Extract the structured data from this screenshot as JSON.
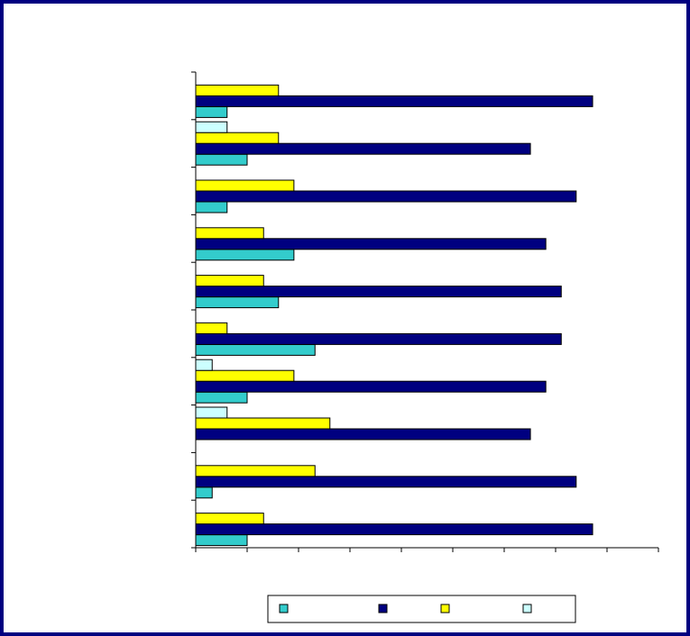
{
  "chart_data": {
    "type": "hbar",
    "categories": [
      null,
      null,
      null,
      null,
      null,
      null,
      null,
      null,
      null,
      null
    ],
    "series": [
      {
        "color": "#33cccc",
        "values": [
          1.0,
          0.32,
          null,
          1.0,
          2.32,
          1.61,
          1.91,
          0.61,
          1.0,
          0.61
        ]
      },
      {
        "color": "#000080",
        "values": [
          7.72,
          7.4,
          6.51,
          6.81,
          7.11,
          7.11,
          6.81,
          7.4,
          6.51,
          7.72
        ]
      },
      {
        "color": "#ffff00",
        "values": [
          1.32,
          2.32,
          2.61,
          1.91,
          0.61,
          1.32,
          1.32,
          1.91,
          1.61,
          1.61
        ]
      },
      {
        "color": "#ccffff",
        "values": [
          null,
          null,
          0.61,
          0.32,
          null,
          null,
          null,
          null,
          0.61,
          null
        ]
      }
    ],
    "xlim": [
      0,
      9
    ],
    "xticks": [
      0,
      1,
      2,
      3,
      4,
      5,
      6,
      7,
      8,
      9
    ]
  }
}
